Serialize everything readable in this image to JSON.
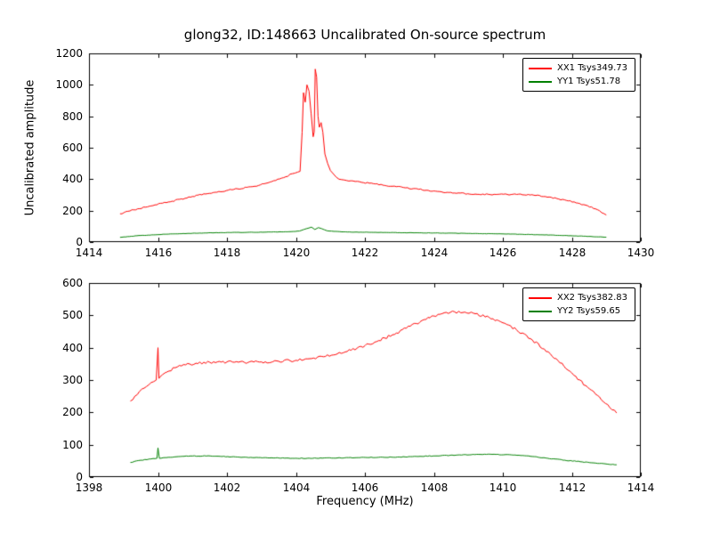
{
  "figure": {
    "title": "glong32, ID:148663 Uncalibrated On-source spectrum",
    "xlabel": "Frequency (MHz)",
    "ylabel": "Uncalibrated amplitude"
  },
  "chart_data": [
    {
      "type": "line",
      "title": "glong32, ID:148663 Uncalibrated On-source spectrum",
      "ylabel": "Uncalibrated amplitude",
      "xlabel": "",
      "xlim": [
        1414,
        1430
      ],
      "ylim": [
        0,
        1200
      ],
      "xticks": [
        1414,
        1416,
        1418,
        1420,
        1422,
        1424,
        1426,
        1428,
        1430
      ],
      "yticks": [
        0,
        200,
        400,
        600,
        800,
        1000,
        1200
      ],
      "grid": false,
      "legend_position": "upper right",
      "series": [
        {
          "name": "XX1 Tsys349.73",
          "color": "#ff0000",
          "noise": 4,
          "x": [
            1414.9,
            1415.3,
            1415.8,
            1416.3,
            1417.0,
            1417.6,
            1418.2,
            1418.8,
            1419.3,
            1419.7,
            1419.9,
            1420.05,
            1420.12,
            1420.18,
            1420.22,
            1420.27,
            1420.32,
            1420.38,
            1420.44,
            1420.5,
            1420.53,
            1420.56,
            1420.6,
            1420.64,
            1420.68,
            1420.73,
            1420.78,
            1420.84,
            1420.92,
            1421.0,
            1421.1,
            1421.25,
            1421.4,
            1421.6,
            1421.9,
            1422.3,
            1422.8,
            1423.4,
            1424.0,
            1424.6,
            1425.2,
            1425.8,
            1426.4,
            1426.9,
            1427.4,
            1427.9,
            1428.4,
            1428.8,
            1429.0
          ],
          "y": [
            180,
            205,
            230,
            255,
            290,
            315,
            335,
            355,
            385,
            415,
            435,
            445,
            450,
            700,
            950,
            890,
            1000,
            960,
            820,
            670,
            700,
            1100,
            1050,
            800,
            730,
            760,
            700,
            560,
            500,
            455,
            430,
            400,
            395,
            390,
            380,
            370,
            355,
            340,
            325,
            312,
            305,
            303,
            303,
            298,
            285,
            262,
            235,
            200,
            172
          ]
        },
        {
          "name": "YY1 Tsys51.78",
          "color": "#008000",
          "noise": 1,
          "x": [
            1414.9,
            1415.5,
            1416.2,
            1417.0,
            1417.8,
            1418.6,
            1419.3,
            1419.8,
            1420.1,
            1420.3,
            1420.45,
            1420.55,
            1420.65,
            1420.75,
            1420.9,
            1421.1,
            1421.5,
            1422.2,
            1423.0,
            1424.0,
            1425.0,
            1426.0,
            1427.0,
            1427.8,
            1428.5,
            1429.0
          ],
          "y": [
            30,
            42,
            50,
            56,
            60,
            62,
            64,
            66,
            70,
            85,
            95,
            80,
            92,
            85,
            72,
            68,
            64,
            62,
            60,
            58,
            55,
            52,
            47,
            42,
            36,
            31
          ]
        }
      ]
    },
    {
      "type": "line",
      "title": "",
      "ylabel": "",
      "xlabel": "Frequency (MHz)",
      "xlim": [
        1398,
        1414
      ],
      "ylim": [
        0,
        600
      ],
      "xticks": [
        1398,
        1400,
        1402,
        1404,
        1406,
        1408,
        1410,
        1412,
        1414
      ],
      "yticks": [
        0,
        100,
        200,
        300,
        400,
        500,
        600
      ],
      "grid": false,
      "legend_position": "upper right",
      "series": [
        {
          "name": "XX2 Tsys382.83",
          "color": "#ff0000",
          "noise": 4,
          "x": [
            1399.2,
            1399.4,
            1399.6,
            1399.8,
            1399.95,
            1400.0,
            1400.03,
            1400.06,
            1400.2,
            1400.5,
            1400.8,
            1401.1,
            1401.5,
            1402.0,
            1402.5,
            1403.0,
            1403.5,
            1404.0,
            1404.4,
            1404.8,
            1405.2,
            1405.6,
            1406.0,
            1406.4,
            1406.8,
            1407.2,
            1407.6,
            1408.0,
            1408.3,
            1408.6,
            1408.9,
            1409.2,
            1409.6,
            1410.0,
            1410.4,
            1410.8,
            1411.2,
            1411.6,
            1412.0,
            1412.4,
            1412.8,
            1413.1,
            1413.3
          ],
          "y": [
            235,
            255,
            275,
            292,
            300,
            400,
            305,
            310,
            322,
            338,
            347,
            352,
            355,
            356,
            355,
            356,
            358,
            361,
            366,
            372,
            381,
            392,
            406,
            422,
            440,
            460,
            480,
            498,
            508,
            511,
            510,
            505,
            494,
            477,
            455,
            428,
            396,
            360,
            322,
            283,
            248,
            215,
            198
          ]
        },
        {
          "name": "YY2 Tsys59.65",
          "color": "#008000",
          "noise": 1,
          "x": [
            1399.2,
            1399.5,
            1399.8,
            1399.97,
            1400.0,
            1400.04,
            1400.3,
            1400.7,
            1401.0,
            1401.4,
            1401.8,
            1402.3,
            1402.8,
            1403.4,
            1404.0,
            1404.6,
            1405.2,
            1405.8,
            1406.4,
            1407.0,
            1407.6,
            1408.2,
            1408.8,
            1409.3,
            1409.8,
            1410.3,
            1410.8,
            1411.3,
            1411.8,
            1412.3,
            1412.8,
            1413.3
          ],
          "y": [
            45,
            52,
            56,
            58,
            90,
            58,
            61,
            64,
            65,
            65,
            64,
            62,
            60,
            59,
            58,
            58,
            59,
            60,
            61,
            62,
            64,
            66,
            68,
            70,
            70,
            68,
            64,
            58,
            52,
            47,
            42,
            38
          ]
        }
      ]
    }
  ]
}
